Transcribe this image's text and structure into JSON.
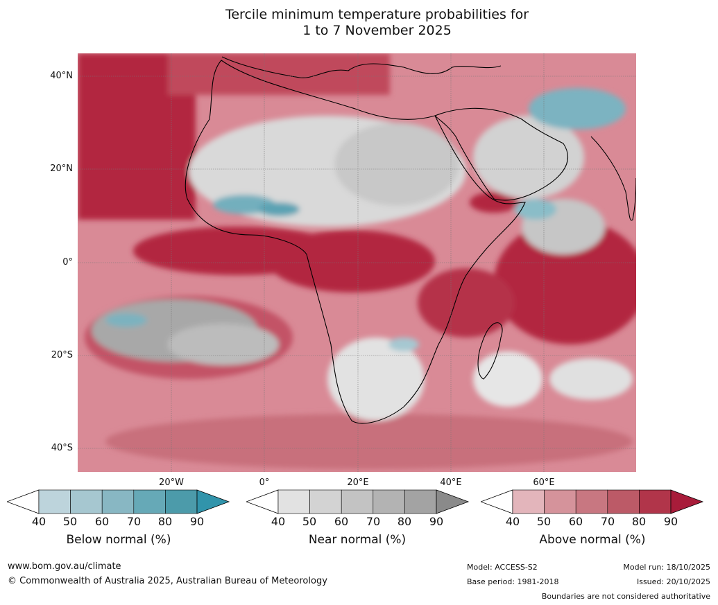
{
  "title": {
    "line1": "Tercile minimum temperature probabilities for",
    "line2": "1 to 7 November 2025"
  },
  "map": {
    "region": "Africa",
    "lat_labels": [
      "40°N",
      "20°N",
      "0°",
      "20°S",
      "40°S"
    ],
    "lon_labels": [
      "20°W",
      "0°",
      "20°E",
      "40°E",
      "60°E"
    ]
  },
  "colorbars": [
    {
      "title": "Below normal (%)",
      "ticks": [
        "40",
        "50",
        "60",
        "70",
        "80",
        "90"
      ],
      "colors": [
        "#ffffff",
        "#bdd4dc",
        "#a6c7d0",
        "#88b7c3",
        "#66a9b7",
        "#4c9baa",
        "#3194ab"
      ]
    },
    {
      "title": "Near normal (%)",
      "ticks": [
        "40",
        "50",
        "60",
        "70",
        "80",
        "90"
      ],
      "colors": [
        "#ffffff",
        "#e2e2e2",
        "#d3d3d3",
        "#c3c3c3",
        "#b3b3b3",
        "#a3a3a3",
        "#8a8a8a"
      ]
    },
    {
      "title": "Above normal (%)",
      "ticks": [
        "40",
        "50",
        "60",
        "70",
        "80",
        "90"
      ],
      "colors": [
        "#ffffff",
        "#e3b5bb",
        "#d5939b",
        "#c87781",
        "#bc5a67",
        "#b1354a",
        "#a81c3a"
      ]
    }
  ],
  "footer": {
    "website": "www.bom.gov.au/climate",
    "copyright": "© Commonwealth of Australia 2025, Australian Bureau of Meteorology",
    "model": "Model: ACCESS-S2",
    "base_period": "Base period: 1981-2018",
    "model_run": "Model run: 18/10/2025",
    "issued": "Issued: 20/10/2025",
    "disclaimer": "Boundaries are not considered authoritative"
  }
}
